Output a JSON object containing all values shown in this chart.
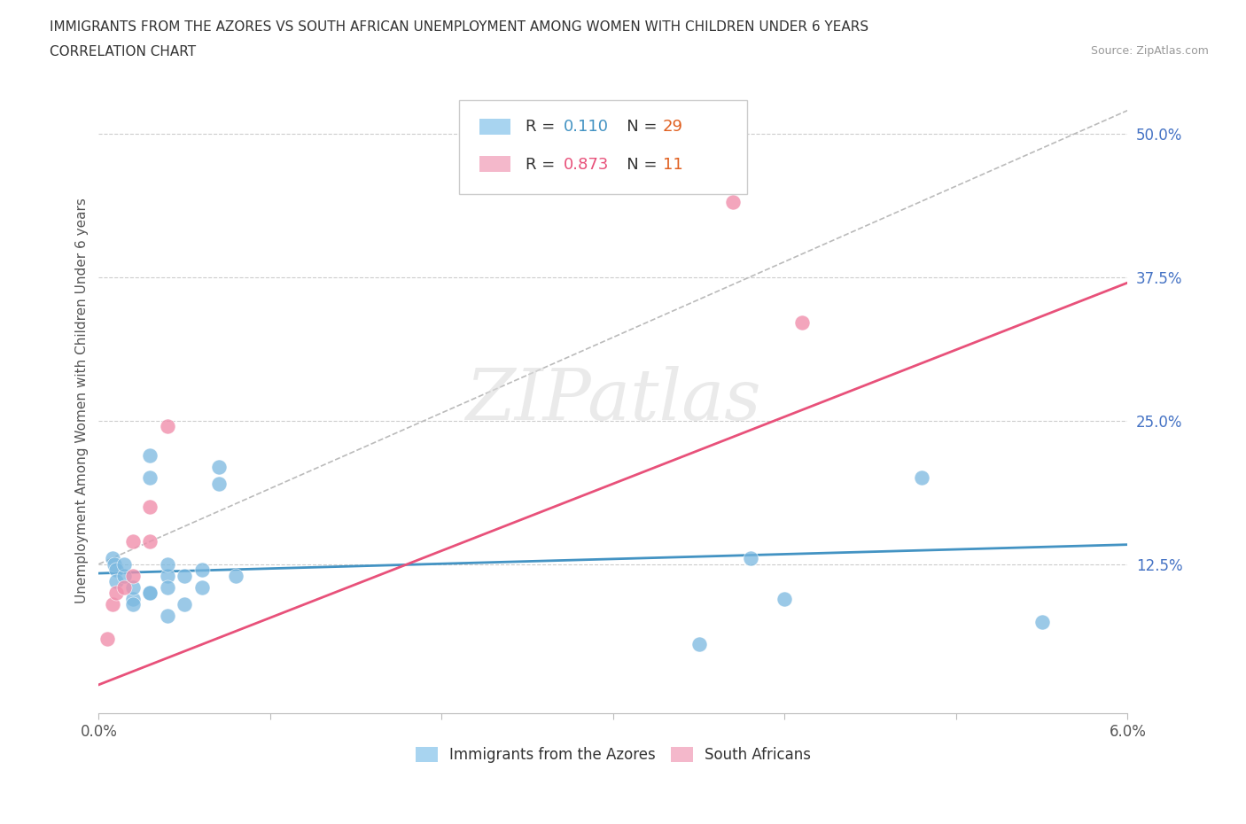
{
  "title_line1": "IMMIGRANTS FROM THE AZORES VS SOUTH AFRICAN UNEMPLOYMENT AMONG WOMEN WITH CHILDREN UNDER 6 YEARS",
  "title_line2": "CORRELATION CHART",
  "source": "Source: ZipAtlas.com",
  "ylabel": "Unemployment Among Women with Children Under 6 years",
  "xlim": [
    0.0,
    0.06
  ],
  "ylim": [
    -0.005,
    0.54
  ],
  "yticks": [
    0.0,
    0.125,
    0.25,
    0.375,
    0.5
  ],
  "ytick_labels": [
    "",
    "12.5%",
    "25.0%",
    "37.5%",
    "50.0%"
  ],
  "xticks": [
    0.0,
    0.01,
    0.02,
    0.03,
    0.04,
    0.05,
    0.06
  ],
  "xtick_labels": [
    "0.0%",
    "",
    "",
    "",
    "",
    "",
    "6.0%"
  ],
  "blue_R": 0.11,
  "blue_N": 29,
  "pink_R": 0.873,
  "pink_N": 11,
  "blue_label": "Immigrants from the Azores",
  "pink_label": "South Africans",
  "blue_legend_color": "#a8d4f0",
  "pink_legend_color": "#f4b8cb",
  "blue_scatter_color": "#7ab8e0",
  "pink_scatter_color": "#f08fac",
  "blue_line_color": "#4393c3",
  "pink_line_color": "#e8517a",
  "blue_R_color": "#4393c3",
  "pink_R_color": "#e8517a",
  "blue_N_color": "#e06020",
  "pink_N_color": "#e06020",
  "diag_color": "#bbbbbb",
  "grid_color": "#cccccc",
  "watermark_color": "#e8e8e8",
  "blue_x": [
    0.0008,
    0.0009,
    0.001,
    0.001,
    0.0015,
    0.0015,
    0.002,
    0.002,
    0.002,
    0.003,
    0.003,
    0.003,
    0.003,
    0.004,
    0.004,
    0.004,
    0.004,
    0.005,
    0.005,
    0.006,
    0.006,
    0.007,
    0.007,
    0.008,
    0.035,
    0.038,
    0.04,
    0.048,
    0.055
  ],
  "blue_y": [
    0.13,
    0.125,
    0.12,
    0.11,
    0.115,
    0.125,
    0.095,
    0.105,
    0.09,
    0.1,
    0.22,
    0.2,
    0.1,
    0.08,
    0.115,
    0.105,
    0.125,
    0.09,
    0.115,
    0.105,
    0.12,
    0.21,
    0.195,
    0.115,
    0.055,
    0.13,
    0.095,
    0.2,
    0.075
  ],
  "pink_x": [
    0.0005,
    0.0008,
    0.001,
    0.0015,
    0.002,
    0.002,
    0.003,
    0.003,
    0.004,
    0.037,
    0.041
  ],
  "pink_y": [
    0.06,
    0.09,
    0.1,
    0.105,
    0.115,
    0.145,
    0.145,
    0.175,
    0.245,
    0.44,
    0.335
  ],
  "blue_trend_x": [
    0.0,
    0.06
  ],
  "blue_trend_y": [
    0.117,
    0.142
  ],
  "pink_trend_x": [
    0.0,
    0.06
  ],
  "pink_trend_y": [
    0.02,
    0.37
  ]
}
